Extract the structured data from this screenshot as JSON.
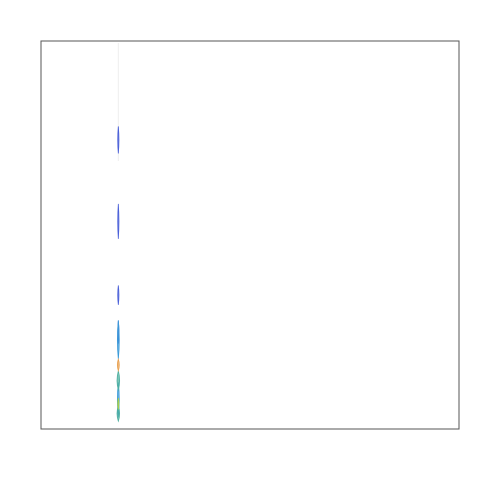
{
  "chart_data": {
    "type": "area",
    "title": "",
    "xlabel": "",
    "ylabel": "",
    "grid": false,
    "legend": "none",
    "xlim": [
      0,
      1
    ],
    "ylim": [
      0,
      1
    ],
    "series": [
      {
        "color": "#4a5fd8",
        "points": [
          [
            0.185,
            0.22
          ],
          [
            0.185,
            0.28
          ],
          [
            0.185,
            0.32
          ],
          [
            0.185,
            0.37
          ],
          [
            0.185,
            0.49
          ],
          [
            0.185,
            0.58
          ],
          [
            0.185,
            0.71
          ],
          [
            0.185,
            0.78
          ]
        ]
      },
      {
        "color": "#3a9ad8",
        "points": [
          [
            0.185,
            0.03
          ],
          [
            0.185,
            0.12
          ],
          [
            0.185,
            0.18
          ],
          [
            0.185,
            0.28
          ]
        ]
      },
      {
        "color": "#4fb0a0",
        "points": [
          [
            0.185,
            0.02
          ],
          [
            0.185,
            0.06
          ],
          [
            0.185,
            0.1
          ],
          [
            0.185,
            0.15
          ],
          [
            0.185,
            0.2
          ]
        ]
      },
      {
        "color": "#a8d048",
        "points": [
          [
            0.185,
            0.05
          ],
          [
            0.185,
            0.08
          ],
          [
            0.185,
            0.12
          ]
        ]
      },
      {
        "color": "#e8a050",
        "points": [
          [
            0.185,
            0.15
          ],
          [
            0.185,
            0.18
          ],
          [
            0.185,
            0.21
          ]
        ]
      }
    ]
  }
}
